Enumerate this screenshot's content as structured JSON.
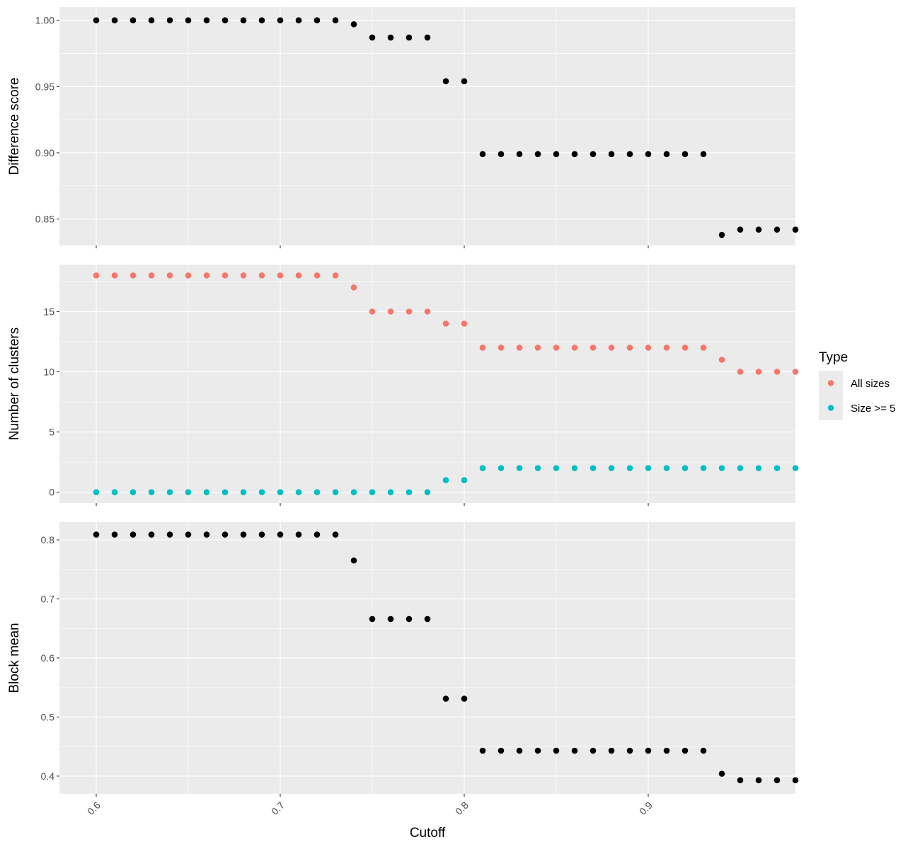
{
  "chart_data": {
    "type": "scatter",
    "x": [
      0.6,
      0.61,
      0.62,
      0.63,
      0.64,
      0.65,
      0.66,
      0.67,
      0.68,
      0.69,
      0.7,
      0.71,
      0.72,
      0.73,
      0.74,
      0.75,
      0.76,
      0.77,
      0.78,
      0.79,
      0.8,
      0.81,
      0.82,
      0.83,
      0.84,
      0.85,
      0.86,
      0.87,
      0.88,
      0.89,
      0.9,
      0.91,
      0.92,
      0.93,
      0.94,
      0.95,
      0.96,
      0.97,
      0.98
    ],
    "xlabel": "Cutoff",
    "xlim": [
      0.58,
      0.98
    ],
    "x_ticks": [
      0.6,
      0.7,
      0.8,
      0.9
    ],
    "x_tick_labels": [
      "0.6",
      "0.7",
      "0.8",
      "0.9"
    ],
    "panels": [
      {
        "ylabel": "Difference score",
        "ylim": [
          0.83,
          1.01
        ],
        "y_ticks": [
          0.85,
          0.9,
          0.95,
          1.0
        ],
        "y_tick_labels": [
          "0.85",
          "0.90",
          "0.95",
          "1.00"
        ],
        "series": [
          {
            "color": "#000000",
            "values": [
              1,
              1,
              1,
              1,
              1,
              1,
              1,
              1,
              1,
              1,
              1,
              1,
              1,
              1,
              0.997,
              0.987,
              0.987,
              0.987,
              0.987,
              0.954,
              0.954,
              0.899,
              0.899,
              0.899,
              0.899,
              0.899,
              0.899,
              0.899,
              0.899,
              0.899,
              0.899,
              0.899,
              0.899,
              0.899,
              0.838,
              0.842,
              0.842,
              0.842,
              0.842
            ]
          }
        ]
      },
      {
        "ylabel": "Number of clusters",
        "ylim": [
          -0.9,
          18.9
        ],
        "y_ticks": [
          0,
          5,
          10,
          15
        ],
        "y_tick_labels": [
          "0",
          "5",
          "10",
          "15"
        ],
        "series": [
          {
            "name": "All sizes",
            "color": "#F8766D",
            "values": [
              18,
              18,
              18,
              18,
              18,
              18,
              18,
              18,
              18,
              18,
              18,
              18,
              18,
              18,
              17,
              15,
              15,
              15,
              15,
              14,
              14,
              12,
              12,
              12,
              12,
              12,
              12,
              12,
              12,
              12,
              12,
              12,
              12,
              12,
              11,
              10,
              10,
              10,
              10
            ]
          },
          {
            "name": "Size >= 5",
            "color": "#00BFC4",
            "values": [
              0,
              0,
              0,
              0,
              0,
              0,
              0,
              0,
              0,
              0,
              0,
              0,
              0,
              0,
              0,
              0,
              0,
              0,
              0,
              1,
              1,
              2,
              2,
              2,
              2,
              2,
              2,
              2,
              2,
              2,
              2,
              2,
              2,
              2,
              2,
              2,
              2,
              2,
              2
            ]
          }
        ]
      },
      {
        "ylabel": "Block mean",
        "ylim": [
          0.37,
          0.83
        ],
        "y_ticks": [
          0.4,
          0.5,
          0.6,
          0.7,
          0.8
        ],
        "y_tick_labels": [
          "0.4",
          "0.5",
          "0.6",
          "0.7",
          "0.8"
        ],
        "series": [
          {
            "color": "#000000",
            "values": [
              0.809,
              0.809,
              0.809,
              0.809,
              0.809,
              0.809,
              0.809,
              0.809,
              0.809,
              0.809,
              0.809,
              0.809,
              0.809,
              0.809,
              0.765,
              0.666,
              0.666,
              0.666,
              0.666,
              0.531,
              0.531,
              0.443,
              0.443,
              0.443,
              0.443,
              0.443,
              0.443,
              0.443,
              0.443,
              0.443,
              0.443,
              0.443,
              0.443,
              0.443,
              0.404,
              0.393,
              0.393,
              0.393,
              0.393
            ]
          }
        ]
      }
    ],
    "legend": {
      "title": "Type",
      "position": "right",
      "entries": [
        {
          "label": "All sizes",
          "color": "#F8766D"
        },
        {
          "label": "Size >= 5",
          "color": "#00BFC4"
        }
      ]
    },
    "grid": true,
    "panel_background": "#EBEBEB",
    "grid_color": "#FFFFFF"
  }
}
